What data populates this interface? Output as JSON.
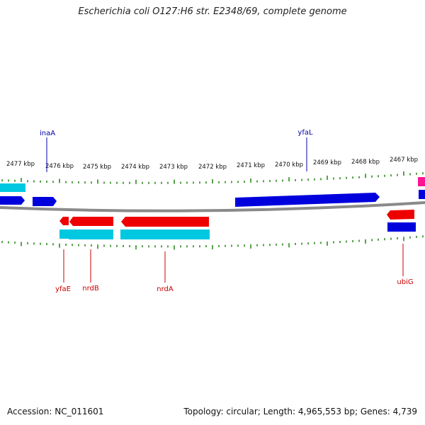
{
  "title": "Escherichia coli O127:H6 str. E2348/69, complete genome",
  "accession": "Accession: NC_011601",
  "topology": "Topology: circular; Length: 4,965,553 bp; Genes: 4,739",
  "colors": {
    "tick": "#2e8b1e",
    "backbone": "#808080",
    "forward_gene": "#0000dd",
    "reverse_gene": "#ee0000",
    "cds_cyan": "#00c8e0",
    "rna_pink": "#ff1493",
    "forward_label": "#0000aa",
    "reverse_label": "#cc0000"
  },
  "scale_labels": [
    "2477 kbp",
    "2476 kbp",
    "2475 kbp",
    "2474 kbp",
    "2473 kbp",
    "2472 kbp",
    "2471 kbp",
    "2470 kbp",
    "2469 kbp",
    "2468 kbp",
    "2467 kbp"
  ],
  "gene_labels_top": [
    "inaA",
    "yfaL"
  ],
  "gene_labels_bottom": [
    "yfaE",
    "nrdB",
    "nrdA",
    "ubiG"
  ]
}
